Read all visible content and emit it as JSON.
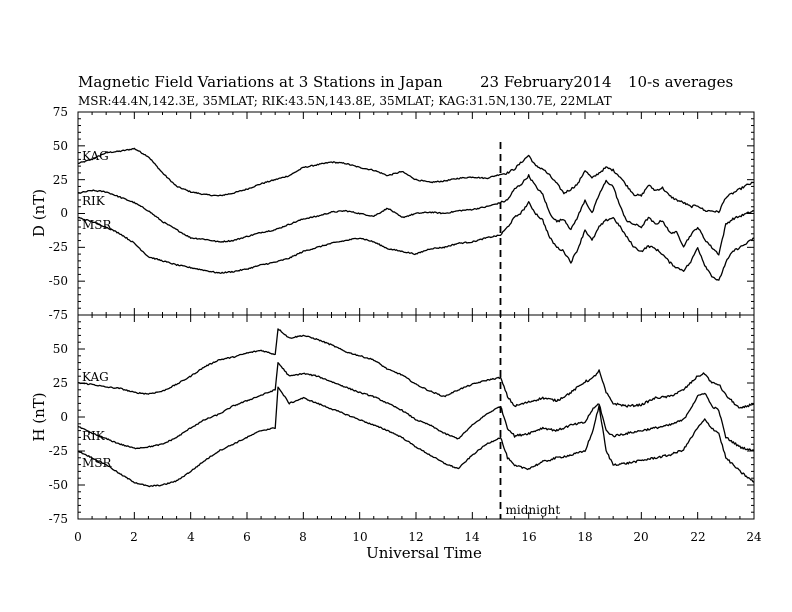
{
  "chart_data": {
    "type": "line",
    "title": "Magnetic Field Variations at 3 Stations in Japan",
    "date": "23 February2014",
    "averaging": "10-s averages",
    "subtitle": "MSR:44.4N,142.3E, 35MLAT;  RIK:43.5N,143.8E, 35MLAT;  KAG:31.5N,130.7E, 22MLAT",
    "xlabel": "Universal Time",
    "xlim": [
      0,
      24
    ],
    "xticks": [
      "0",
      "2",
      "4",
      "6",
      "8",
      "10",
      "12",
      "14",
      "16",
      "18",
      "20",
      "22",
      "24"
    ],
    "annotation": {
      "x": 15,
      "label": "midnight"
    },
    "panels": [
      {
        "id": "D",
        "ylabel": "D (nT)",
        "ylim": [
          -75,
          75
        ],
        "yticks": [
          "75",
          "50",
          "25",
          "0",
          "-25",
          "-50",
          "-75"
        ],
        "series": [
          {
            "name": "KAG",
            "x": [
              0,
              0.5,
              1,
              1.5,
              2,
              2.5,
              3,
              3.5,
              4,
              4.5,
              5,
              5.5,
              6,
              6.5,
              7,
              7.5,
              8,
              8.5,
              9,
              9.5,
              10,
              10.5,
              11,
              11.5,
              12,
              12.5,
              13,
              13.5,
              14,
              14.5,
              15,
              15.25,
              15.5,
              15.75,
              16,
              16.25,
              16.5,
              16.75,
              17,
              17.25,
              17.5,
              17.75,
              18,
              18.25,
              18.5,
              18.75,
              19,
              19.25,
              19.5,
              19.75,
              20,
              20.25,
              20.5,
              20.75,
              21,
              21.25,
              21.5,
              21.75,
              22,
              22.25,
              22.5,
              22.75,
              23,
              23.25,
              23.5,
              23.75,
              24
            ],
            "values": [
              37,
              40,
              45,
              46,
              48,
              42,
              30,
              20,
              16,
              14,
              13,
              15,
              18,
              22,
              25,
              28,
              34,
              36,
              38,
              37,
              34,
              32,
              28,
              31,
              25,
              23,
              24,
              26,
              27,
              26,
              29,
              30,
              33,
              38,
              43,
              35,
              33,
              28,
              22,
              15,
              18,
              22,
              32,
              26,
              30,
              34,
              32,
              27,
              20,
              14,
              13,
              21,
              17,
              19,
              13,
              10,
              8,
              5,
              6,
              2,
              2,
              1,
              12,
              15,
              18,
              21,
              23
            ]
          },
          {
            "name": "RIK",
            "x": [
              0,
              0.5,
              1,
              1.5,
              2,
              2.5,
              3,
              3.5,
              4,
              4.5,
              5,
              5.5,
              6,
              6.5,
              7,
              7.5,
              8,
              8.5,
              9,
              9.5,
              10,
              10.5,
              11,
              11.5,
              12,
              12.5,
              13,
              13.5,
              14,
              14.5,
              15,
              15.25,
              15.5,
              15.75,
              16,
              16.25,
              16.5,
              16.75,
              17,
              17.25,
              17.5,
              17.75,
              18,
              18.25,
              18.5,
              18.75,
              19,
              19.25,
              19.5,
              19.75,
              20,
              20.25,
              20.5,
              20.75,
              21,
              21.25,
              21.5,
              21.75,
              22,
              22.25,
              22.5,
              22.75,
              23,
              23.25,
              23.5,
              23.75,
              24
            ],
            "values": [
              15,
              17,
              16,
              12,
              8,
              2,
              -6,
              -12,
              -18,
              -19,
              -21,
              -20,
              -17,
              -14,
              -12,
              -8,
              -4,
              -2,
              1,
              2,
              0,
              -2,
              4,
              -3,
              0,
              1,
              0,
              2,
              3,
              5,
              8,
              10,
              18,
              22,
              28,
              20,
              14,
              0,
              -6,
              -4,
              -12,
              -2,
              10,
              0,
              14,
              24,
              20,
              5,
              -6,
              -8,
              -10,
              -3,
              -8,
              -5,
              -14,
              -14,
              -24,
              -16,
              -10,
              -19,
              -25,
              -30,
              -8,
              -4,
              -2,
              0,
              2
            ]
          },
          {
            "name": "MSR",
            "x": [
              0,
              0.5,
              1,
              1.5,
              2,
              2.5,
              3,
              3.5,
              4,
              4.5,
              5,
              5.5,
              6,
              6.5,
              7,
              7.5,
              8,
              8.5,
              9,
              9.5,
              10,
              10.5,
              11,
              11.5,
              12,
              12.5,
              13,
              13.5,
              14,
              14.5,
              15,
              15.25,
              15.5,
              15.75,
              16,
              16.25,
              16.5,
              16.75,
              17,
              17.25,
              17.5,
              17.75,
              18,
              18.25,
              18.5,
              18.75,
              19,
              19.25,
              19.5,
              19.75,
              20,
              20.25,
              20.5,
              20.75,
              21,
              21.25,
              21.5,
              21.75,
              22,
              22.25,
              22.5,
              22.75,
              23,
              23.25,
              23.5,
              23.75,
              24
            ],
            "values": [
              -3,
              -6,
              -10,
              -15,
              -22,
              -32,
              -35,
              -38,
              -40,
              -42,
              -44,
              -43,
              -41,
              -38,
              -36,
              -33,
              -28,
              -25,
              -22,
              -20,
              -18,
              -21,
              -26,
              -28,
              -30,
              -26,
              -25,
              -22,
              -21,
              -18,
              -16,
              -10,
              -3,
              1,
              8,
              0,
              -5,
              -18,
              -25,
              -28,
              -36,
              -26,
              -12,
              -20,
              -10,
              -5,
              -3,
              -10,
              -18,
              -25,
              -28,
              -24,
              -26,
              -30,
              -36,
              -40,
              -42,
              -36,
              -25,
              -38,
              -46,
              -50,
              -36,
              -28,
              -25,
              -22,
              -18
            ]
          }
        ]
      },
      {
        "id": "H",
        "ylabel": "H (nT)",
        "ylim": [
          -75,
          75
        ],
        "yticks": [
          "50",
          "25",
          "0",
          "-25",
          "-50",
          "-75"
        ],
        "series": [
          {
            "name": "KAG",
            "x": [
              0,
              0.5,
              1,
              1.5,
              2,
              2.5,
              3,
              3.5,
              4,
              4.5,
              5,
              5.5,
              6,
              6.5,
              7,
              7.1,
              7.5,
              8,
              8.5,
              9,
              9.5,
              10,
              10.5,
              11,
              11.5,
              12,
              12.5,
              13,
              13.5,
              14,
              14.5,
              15,
              15.25,
              15.5,
              16,
              16.5,
              17,
              17.5,
              18,
              18.25,
              18.5,
              18.75,
              19,
              19.5,
              20,
              20.5,
              21,
              21.5,
              22,
              22.25,
              22.5,
              22.75,
              23,
              23.5,
              24
            ],
            "values": [
              25,
              24,
              22,
              21,
              18,
              17,
              19,
              24,
              30,
              37,
              42,
              44,
              47,
              49,
              46,
              65,
              58,
              60,
              57,
              53,
              48,
              45,
              42,
              35,
              31,
              24,
              19,
              15,
              20,
              24,
              27,
              29,
              15,
              8,
              11,
              14,
              12,
              18,
              26,
              28,
              34,
              18,
              10,
              8,
              9,
              14,
              15,
              20,
              30,
              32,
              25,
              24,
              16,
              6,
              10
            ]
          },
          {
            "name": "RIK",
            "x": [
              0,
              0.5,
              1,
              1.5,
              2,
              2.5,
              3,
              3.5,
              4,
              4.5,
              5,
              5.5,
              6,
              6.5,
              7,
              7.1,
              7.5,
              8,
              8.5,
              9,
              9.5,
              10,
              10.5,
              11,
              11.5,
              12,
              12.5,
              13,
              13.5,
              14,
              14.5,
              15,
              15.25,
              15.5,
              16,
              16.5,
              17,
              17.5,
              18,
              18.25,
              18.5,
              18.75,
              19,
              19.5,
              20,
              20.5,
              21,
              21.5,
              22,
              22.25,
              22.5,
              22.75,
              23,
              23.5,
              24
            ],
            "values": [
              -7,
              -12,
              -16,
              -20,
              -23,
              -22,
              -20,
              -15,
              -8,
              -2,
              2,
              8,
              12,
              16,
              20,
              40,
              30,
              32,
              30,
              26,
              22,
              18,
              15,
              10,
              5,
              -2,
              -6,
              -12,
              -16,
              -6,
              2,
              8,
              -8,
              -14,
              -12,
              -8,
              -10,
              -6,
              -4,
              5,
              10,
              -10,
              -14,
              -12,
              -10,
              -8,
              -6,
              -2,
              15,
              18,
              8,
              5,
              -15,
              -22,
              -25
            ]
          },
          {
            "name": "MSR",
            "x": [
              0,
              0.5,
              1,
              1.5,
              2,
              2.5,
              3,
              3.5,
              4,
              4.5,
              5,
              5.5,
              6,
              6.5,
              7,
              7.1,
              7.5,
              8,
              8.5,
              9,
              9.5,
              10,
              10.5,
              11,
              11.5,
              12,
              12.5,
              13,
              13.5,
              14,
              14.5,
              15,
              15.25,
              15.5,
              16,
              16.5,
              17,
              17.5,
              18,
              18.25,
              18.5,
              18.75,
              19,
              19.5,
              20,
              20.5,
              21,
              21.5,
              22,
              22.25,
              22.5,
              22.75,
              23,
              23.5,
              24
            ],
            "values": [
              -25,
              -30,
              -35,
              -42,
              -48,
              -51,
              -50,
              -47,
              -40,
              -32,
              -25,
              -20,
              -15,
              -10,
              -8,
              22,
              10,
              14,
              10,
              6,
              2,
              -2,
              -6,
              -10,
              -15,
              -22,
              -28,
              -34,
              -38,
              -28,
              -20,
              -15,
              -30,
              -36,
              -38,
              -33,
              -30,
              -28,
              -25,
              -12,
              8,
              -25,
              -35,
              -34,
              -32,
              -30,
              -28,
              -24,
              -8,
              -2,
              -8,
              -12,
              -30,
              -40,
              -48
            ]
          }
        ]
      }
    ]
  }
}
